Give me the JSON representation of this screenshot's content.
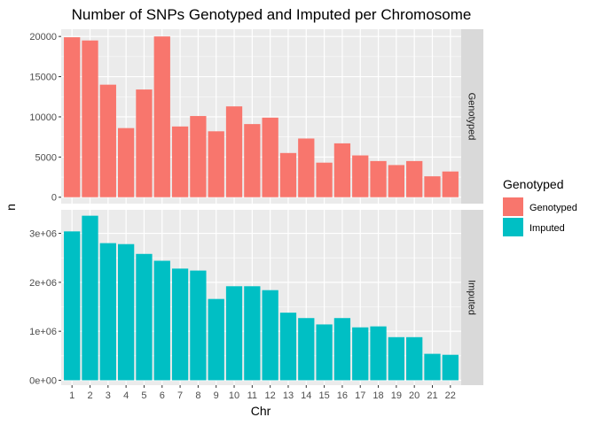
{
  "chart_data": {
    "type": "bar",
    "title": "Number of SNPs Genotyped and Imputed per Chromosome",
    "xlabel": "Chr",
    "ylabel": "n",
    "grid": true,
    "legend_position": "right",
    "legend": {
      "title": "Genotyped",
      "items": [
        {
          "label": "Genotyped",
          "color": "#F8766D"
        },
        {
          "label": "Imputed",
          "color": "#00BFC4"
        }
      ]
    },
    "categories": [
      "1",
      "2",
      "3",
      "4",
      "5",
      "6",
      "7",
      "8",
      "9",
      "10",
      "11",
      "12",
      "13",
      "14",
      "15",
      "16",
      "17",
      "18",
      "19",
      "20",
      "21",
      "22"
    ],
    "panels": [
      {
        "strip": "Genotyped",
        "color": "#F8766D",
        "ylim": [
          -800,
          20900
        ],
        "yticks": [
          {
            "value": 0,
            "label": "0"
          },
          {
            "value": 5000,
            "label": "5000"
          },
          {
            "value": 10000,
            "label": "10000"
          },
          {
            "value": 15000,
            "label": "15000"
          },
          {
            "value": 20000,
            "label": "20000"
          }
        ],
        "values": [
          19900,
          19500,
          14000,
          8600,
          13400,
          20000,
          8800,
          10100,
          8200,
          11300,
          9100,
          9900,
          5500,
          7300,
          4300,
          6700,
          5200,
          4500,
          4000,
          4500,
          2600,
          3200
        ]
      },
      {
        "strip": "Imputed",
        "color": "#00BFC4",
        "ylim": [
          -100000,
          3480000
        ],
        "yticks": [
          {
            "value": 0,
            "label": "0e+00"
          },
          {
            "value": 1000000,
            "label": "1e+06"
          },
          {
            "value": 2000000,
            "label": "2e+06"
          },
          {
            "value": 3000000,
            "label": "3e+06"
          }
        ],
        "values": [
          3040000,
          3360000,
          2800000,
          2780000,
          2580000,
          2440000,
          2280000,
          2240000,
          1660000,
          1920000,
          1920000,
          1840000,
          1380000,
          1270000,
          1140000,
          1270000,
          1080000,
          1100000,
          880000,
          880000,
          540000,
          520000
        ]
      }
    ]
  }
}
